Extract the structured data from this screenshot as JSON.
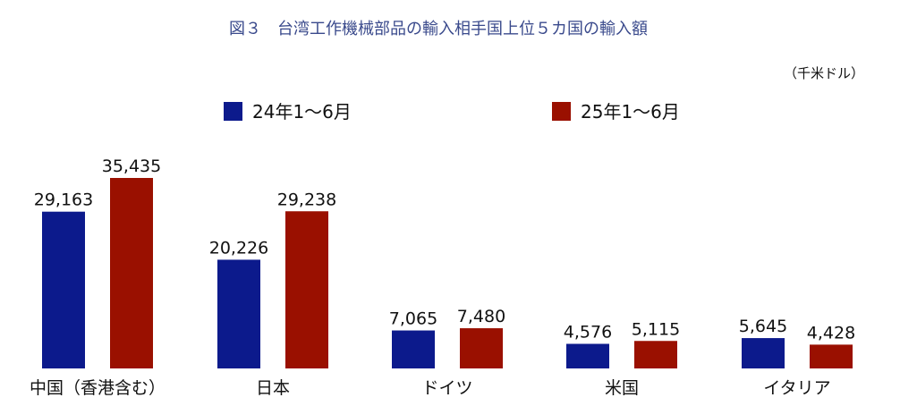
{
  "chart_data": {
    "type": "bar",
    "title": "図３　台湾工作機械部品の輸入相手国上位５カ国の輸入額",
    "unit": "（千米ドル）",
    "categories": [
      "中国（香港含む）",
      "日本",
      "ドイツ",
      "米国",
      "イタリア"
    ],
    "series": [
      {
        "name": "24年1～6月",
        "color": "#0c1a8c",
        "values": [
          29163,
          20226,
          7065,
          4576,
          5645
        ],
        "labels": [
          "29,163",
          "20,226",
          "7,065",
          "4,576",
          "5,645"
        ]
      },
      {
        "name": "25年1～6月",
        "color": "#9a1000",
        "values": [
          35435,
          29238,
          7480,
          5115,
          4428
        ],
        "labels": [
          "35,435",
          "29,238",
          "7,480",
          "5,115",
          "4,428"
        ]
      }
    ],
    "ylim": [
      0,
      40000
    ],
    "grid": false,
    "legend": "top-center"
  }
}
